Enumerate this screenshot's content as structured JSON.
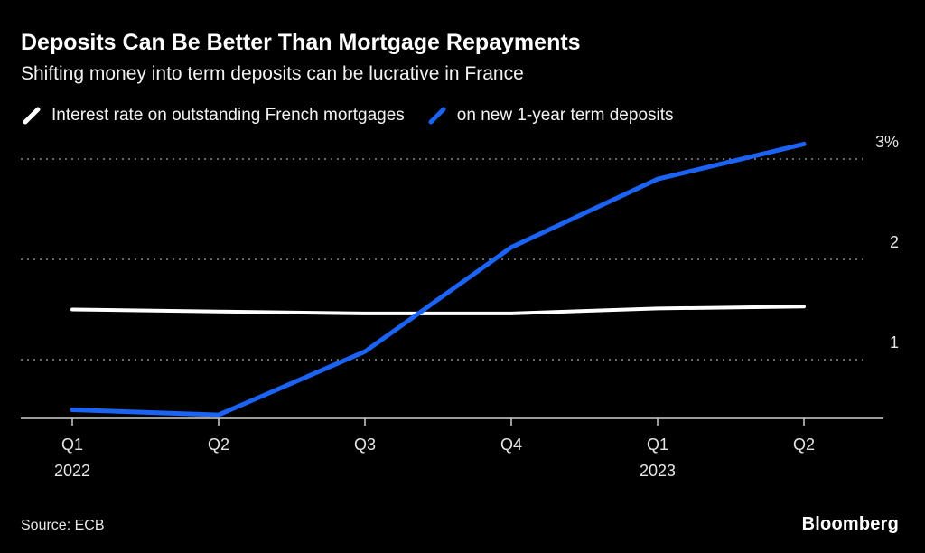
{
  "header": {
    "title": "Deposits Can Be Better Than Mortgage Repayments",
    "subtitle": "Shifting money into term deposits can be lucrative in France"
  },
  "legend": [
    {
      "label": "Interest rate on outstanding French mortgages",
      "color": "#ffffff"
    },
    {
      "label": "on new 1-year term deposits",
      "color": "#1a63f5"
    }
  ],
  "chart_data": {
    "type": "line",
    "categories": [
      "Q1 2022",
      "Q2 2022",
      "Q3 2022",
      "Q4 2022",
      "Q1 2023",
      "Q2 2023"
    ],
    "x_tick_labels": [
      "Q1",
      "Q2",
      "Q3",
      "Q4",
      "Q1",
      "Q2"
    ],
    "x_year_labels": [
      {
        "text": "2022",
        "index": 0
      },
      {
        "text": "2023",
        "index": 4
      }
    ],
    "series": [
      {
        "name": "Interest rate on outstanding French mortgages",
        "color": "#ffffff",
        "line_width": 4,
        "values": [
          1.5,
          1.48,
          1.46,
          1.46,
          1.51,
          1.53
        ]
      },
      {
        "name": "on new 1-year term deposits",
        "color": "#1a63f5",
        "line_width": 5,
        "values": [
          0.5,
          0.45,
          1.08,
          2.12,
          2.8,
          3.15
        ]
      }
    ],
    "y_ticks": [
      {
        "value": 1,
        "label": "1"
      },
      {
        "value": 2,
        "label": "2"
      },
      {
        "value": 3,
        "label": "3%"
      }
    ],
    "ylim": [
      0.4,
      3.3
    ],
    "grid": "dotted-horizontal",
    "legend_position": "top",
    "colors": {
      "background": "#000000",
      "gridline": "#8a8a8a",
      "axis": "#cfcfcf",
      "tick_text": "#e6e6e6"
    }
  },
  "footer": {
    "source": "Source: ECB",
    "brand": "Bloomberg"
  }
}
